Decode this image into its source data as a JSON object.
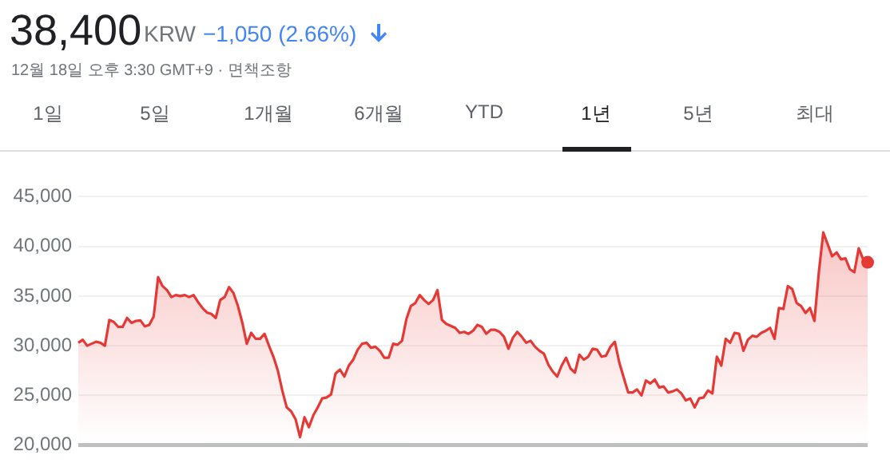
{
  "chart_data": {
    "type": "area",
    "title": "38,400",
    "annotations": [
      "KRW",
      "−1,050 (2.66%)",
      "12월 18일 오후 3:30 GMT+9 · 면책조항",
      "1일",
      "5일",
      "1개월",
      "6개월",
      "YTD",
      "1년",
      "5년",
      "최대"
    ],
    "categories": [
      null,
      null,
      null,
      null,
      null,
      null,
      null,
      null,
      null,
      null,
      null,
      null,
      null,
      null,
      null,
      null,
      null,
      null,
      null,
      null,
      null,
      null,
      null,
      null,
      null,
      null,
      null,
      null,
      null,
      null,
      null,
      null,
      null,
      null,
      null,
      null,
      null,
      null,
      null,
      null,
      null,
      null,
      null,
      null,
      null,
      null,
      null,
      null,
      null,
      null,
      null,
      null,
      null,
      null,
      null,
      null,
      null,
      null,
      null,
      null,
      null,
      null,
      null,
      null,
      null,
      null,
      null,
      null,
      null,
      null,
      null,
      null,
      null,
      null,
      null,
      null,
      null,
      null,
      null,
      null,
      null,
      null,
      null,
      null,
      null,
      null,
      null,
      null,
      null,
      null,
      null,
      null,
      null,
      null,
      null,
      null,
      null,
      null,
      null,
      null,
      null,
      null,
      null,
      null,
      null,
      null,
      null,
      null,
      null,
      null,
      null,
      null,
      null,
      null,
      null,
      null,
      null,
      null,
      null,
      null,
      null,
      null,
      null,
      null,
      null,
      null,
      null,
      null,
      null,
      null,
      null,
      null,
      null,
      null,
      null,
      null,
      null,
      null,
      null,
      null,
      null,
      null,
      null,
      null,
      null,
      null,
      null,
      null,
      null,
      null,
      null,
      null,
      null,
      null,
      null,
      null,
      null,
      null,
      null,
      null,
      null,
      null,
      null,
      null,
      null,
      null,
      null,
      null,
      null,
      null,
      null,
      null,
      null,
      null,
      null,
      null,
      null,
      null,
      null
    ],
    "series": [
      {
        "color": "#e53935",
        "values": [
          30300,
          30600,
          30000,
          30200,
          30400,
          30300,
          30000,
          32600,
          32400,
          31900,
          31900,
          32800,
          32300,
          32500,
          32550,
          31950,
          32100,
          32950,
          36900,
          36000,
          35600,
          34900,
          35100,
          35000,
          35100,
          34900,
          35100,
          34400,
          33800,
          33350,
          33200,
          32800,
          34600,
          34900,
          35900,
          35300,
          34000,
          32300,
          30200,
          31300,
          30700,
          30700,
          31200,
          30000,
          28900,
          27500,
          25500,
          23800,
          23400,
          22600,
          20800,
          22800,
          21800,
          23000,
          23800,
          24700,
          24800,
          25100,
          27200,
          27600,
          26900,
          28000,
          28600,
          29600,
          30200,
          30300,
          29800,
          29900,
          29500,
          28800,
          28800,
          30200,
          30100,
          30500,
          32700,
          34000,
          34300,
          35100,
          34600,
          34200,
          34600,
          35600,
          32600,
          32200,
          32000,
          31800,
          31300,
          31400,
          31200,
          31500,
          32100,
          31900,
          31200,
          31600,
          31600,
          31400,
          30900,
          29700,
          30800,
          31400,
          30900,
          30300,
          30500,
          29900,
          29500,
          29200,
          28100,
          27400,
          26900,
          28000,
          28800,
          27700,
          27300,
          29100,
          28600,
          28900,
          29700,
          29600,
          28900,
          29000,
          29900,
          30400,
          28300,
          26800,
          25300,
          25300,
          25600,
          25000,
          26500,
          26200,
          26600,
          25800,
          25900,
          25300,
          25400,
          25600,
          25200,
          24500,
          24700,
          23800,
          24700,
          24800,
          25500,
          25200,
          28900,
          28000,
          30700,
          30300,
          31300,
          31200,
          29500,
          30600,
          31000,
          30900,
          31300,
          31500,
          31800,
          30700,
          33800,
          33700,
          36000,
          35700,
          34300,
          34000,
          33300,
          33800,
          32500,
          37400,
          41400,
          40200,
          39000,
          39400,
          38700,
          38800,
          37700,
          37400,
          39800,
          38700,
          38400
        ]
      }
    ],
    "ylim": [
      20000,
      45000
    ],
    "yticks": [
      {
        "value": 20000,
        "label": "20,000"
      },
      {
        "value": 25000,
        "label": "25,000"
      },
      {
        "value": 30000,
        "label": "30,000"
      },
      {
        "value": 35000,
        "label": "35,000"
      },
      {
        "value": 40000,
        "label": "40,000"
      },
      {
        "value": 45000,
        "label": "45,000"
      }
    ],
    "grid": "y",
    "tick_labels": "y"
  }
}
